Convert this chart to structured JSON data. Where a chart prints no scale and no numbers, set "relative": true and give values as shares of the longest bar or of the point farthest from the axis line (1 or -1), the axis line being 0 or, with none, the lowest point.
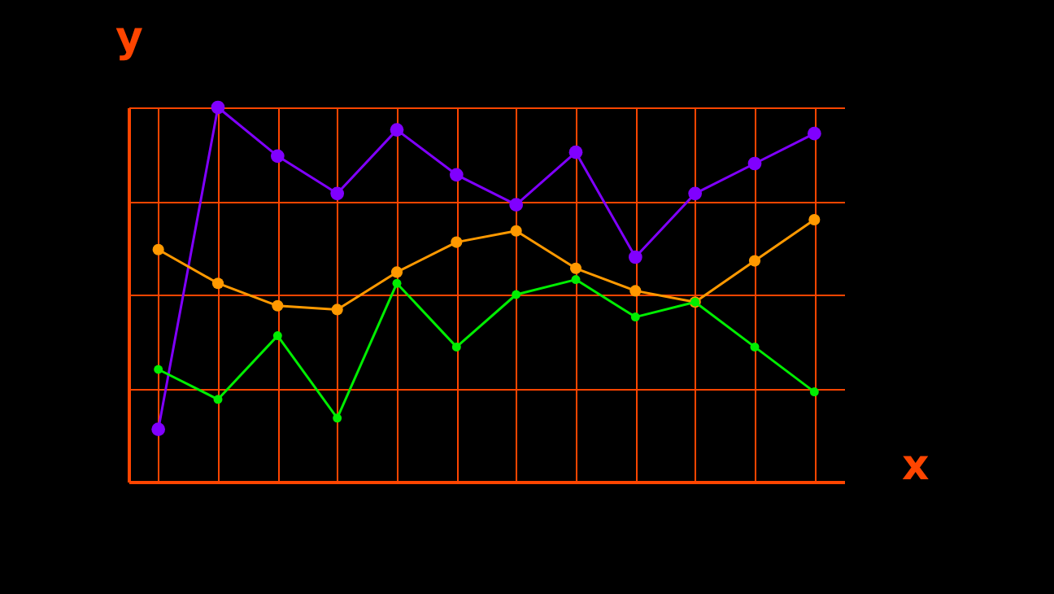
{
  "chart_data": {
    "type": "line",
    "xlabel": "x",
    "ylabel": "y",
    "relative": true,
    "grid": true,
    "marker": "circle",
    "categories": [
      null,
      null,
      null,
      null,
      null,
      null,
      null,
      null,
      null,
      null,
      null,
      null
    ],
    "series": [
      {
        "color": "#8000ff",
        "values": [
          0.14,
          1,
          0.87,
          0.77,
          0.94,
          0.82,
          0.74,
          0.88,
          0.6,
          0.77,
          0.85,
          0.93
        ]
      },
      {
        "color": "#ff9900",
        "values": [
          0.62,
          0.53,
          0.47,
          0.46,
          0.56,
          0.64,
          0.67,
          0.57,
          0.51,
          0.48,
          0.59,
          0.7
        ]
      },
      {
        "color": "#00ee00",
        "values": [
          0.3,
          0.22,
          0.39,
          0.17,
          0.53,
          0.36,
          0.5,
          0.54,
          0.44,
          0.48,
          0.36,
          0.24
        ]
      }
    ]
  }
}
